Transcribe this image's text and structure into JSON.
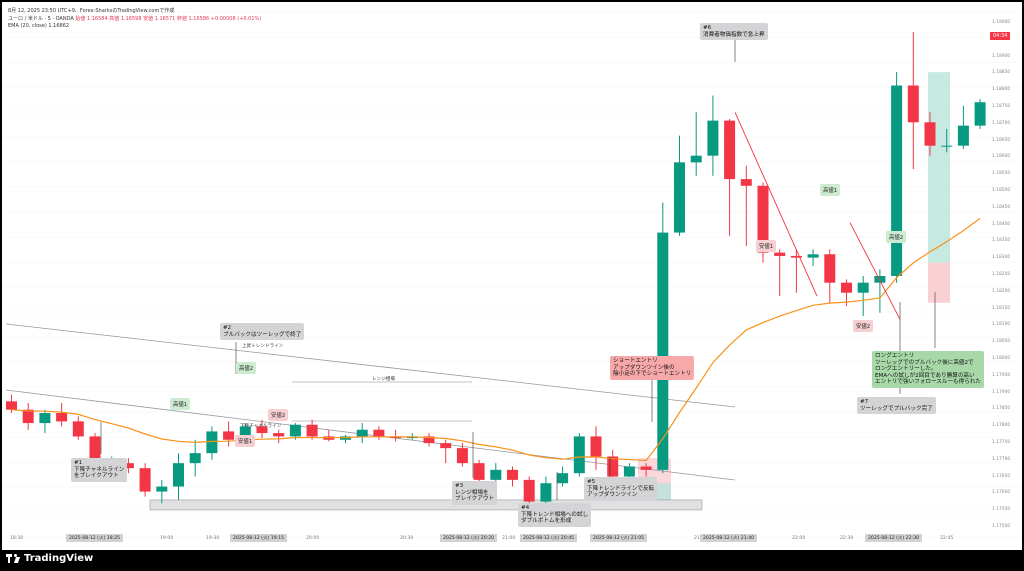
{
  "header": {
    "datetime": "8月 12, 2025 23:50 UTC+9、Forex-SharksのTradingView.comで作成",
    "symbol_line": "ユーロ / 米ドル · 5 · OANDA",
    "ohlc": "始値 1.16584 高値 1.16598 安値 1.16571 終値 1.16586 +0.00008 (+0.01%)",
    "ema": "EMA (20, close) 1.16862"
  },
  "brand": {
    "name": "TradingView"
  },
  "colors": {
    "up": "#089981",
    "down": "#f23645",
    "ema": "#f7931a",
    "trend_line": "#9598a1",
    "note_gray": "#d4d4d6",
    "note_green": "#a8d8a8",
    "note_red": "#f7a8a8"
  },
  "price_axis": {
    "ticks": [
      "1.19000",
      "1.18950",
      "1.18900",
      "1.18850",
      "1.18800",
      "1.18750",
      "1.18700",
      "1.18650",
      "1.18600",
      "1.18550",
      "1.18500",
      "1.18450",
      "1.18400",
      "1.18350",
      "1.18300",
      "1.18250",
      "1.18200",
      "1.18150",
      "1.18100",
      "1.18050",
      "1.18000",
      "1.17950",
      "1.17900",
      "1.17850",
      "1.17800",
      "1.17750",
      "1.17700",
      "1.17650",
      "1.17600",
      "1.17550",
      "1.17500"
    ],
    "current": "04:34"
  },
  "time_axis": {
    "ticks": [
      "18:30",
      "19:00",
      "19:30",
      "20:00",
      "20:30",
      "21:00",
      "21:30",
      "22:00",
      "22:30",
      "22:45"
    ],
    "highlights": [
      "2025-08-12 (火) 18:25",
      "2025-08-12 (火) 19:15",
      "2025-08-12 (火) 20:20",
      "2025-08-12 (火) 20:45",
      "2025-08-12 (火) 21:05",
      "2025-08-12 (火) 21:40",
      "2025-08-12 (火) 22:30"
    ]
  },
  "annotations": {
    "n1": [
      "#1",
      "下降チャネルライン",
      "をブレイクアウト"
    ],
    "n2": [
      "#2",
      "プルバックはツーレッグで終了"
    ],
    "n3": [
      "#3",
      "レンジ相場を",
      "ブレイクアウト"
    ],
    "n4": [
      "#4",
      "下降トレンド相場への試し",
      "ダブルボトムを形成"
    ],
    "n5": [
      "#5",
      "下降トレンドラインで反転",
      "アップダウンツイン"
    ],
    "n6": [
      "#6",
      "消費者物価指数で急上昇"
    ],
    "n7": [
      "#7",
      "ツーレッグでプルバック完了"
    ],
    "short_entry": [
      "ショートエントリ",
      "アップダウンツイン後の",
      "陰小足の下でショートエントリ"
    ],
    "long_entry": [
      "ロングエントリ",
      "ツーレッグでのプルバック後に高値2で",
      "ロングエントリーした。",
      "EMAへの試しが2回目であり勝算の高い",
      "エントリで強いフォロースルーも得られた"
    ]
  },
  "labels": {
    "high1_a": "高値1",
    "high2_a": "高値2",
    "low1_a": "安値1",
    "low2_a": "安値2",
    "high1_b": "高値1",
    "high2_b": "高値2",
    "low1_b": "安値1",
    "low2_b": "安値2",
    "upper_trend": "上昇トレンドライン",
    "lower_channel": "下降チャネルライン",
    "range": "レンジ相場"
  },
  "chart_data": {
    "type": "candlestick",
    "symbol": "ユーロ / 米ドル",
    "timeframe": "5",
    "ylim": [
      1.175,
      1.1905
    ],
    "candles": [
      {
        "o": 1.17885,
        "h": 1.17905,
        "l": 1.1785,
        "c": 1.1786
      },
      {
        "o": 1.1786,
        "h": 1.1788,
        "l": 1.178,
        "c": 1.1782
      },
      {
        "o": 1.1782,
        "h": 1.1786,
        "l": 1.1779,
        "c": 1.1785
      },
      {
        "o": 1.1785,
        "h": 1.1788,
        "l": 1.1781,
        "c": 1.17825
      },
      {
        "o": 1.17825,
        "h": 1.1784,
        "l": 1.1777,
        "c": 1.1778
      },
      {
        "o": 1.1778,
        "h": 1.1779,
        "l": 1.1767,
        "c": 1.17685
      },
      {
        "o": 1.17685,
        "h": 1.1772,
        "l": 1.1766,
        "c": 1.177
      },
      {
        "o": 1.177,
        "h": 1.17715,
        "l": 1.1767,
        "c": 1.17685
      },
      {
        "o": 1.17685,
        "h": 1.177,
        "l": 1.176,
        "c": 1.17615
      },
      {
        "o": 1.17615,
        "h": 1.1765,
        "l": 1.1758,
        "c": 1.1763
      },
      {
        "o": 1.1763,
        "h": 1.1773,
        "l": 1.1759,
        "c": 1.177
      },
      {
        "o": 1.177,
        "h": 1.1777,
        "l": 1.1766,
        "c": 1.1773
      },
      {
        "o": 1.1773,
        "h": 1.1781,
        "l": 1.1771,
        "c": 1.17795
      },
      {
        "o": 1.17795,
        "h": 1.17825,
        "l": 1.1775,
        "c": 1.1777
      },
      {
        "o": 1.1777,
        "h": 1.1782,
        "l": 1.17755,
        "c": 1.1781
      },
      {
        "o": 1.1781,
        "h": 1.1783,
        "l": 1.17775,
        "c": 1.1779
      },
      {
        "o": 1.1779,
        "h": 1.178,
        "l": 1.1776,
        "c": 1.1778
      },
      {
        "o": 1.1778,
        "h": 1.1782,
        "l": 1.1777,
        "c": 1.17815
      },
      {
        "o": 1.17815,
        "h": 1.1783,
        "l": 1.1777,
        "c": 1.1778
      },
      {
        "o": 1.1778,
        "h": 1.178,
        "l": 1.17765,
        "c": 1.1777
      },
      {
        "o": 1.1777,
        "h": 1.17785,
        "l": 1.1776,
        "c": 1.1778
      },
      {
        "o": 1.1778,
        "h": 1.1782,
        "l": 1.1776,
        "c": 1.178
      },
      {
        "o": 1.178,
        "h": 1.1781,
        "l": 1.1777,
        "c": 1.1778
      },
      {
        "o": 1.1778,
        "h": 1.178,
        "l": 1.17765,
        "c": 1.17775
      },
      {
        "o": 1.17775,
        "h": 1.1779,
        "l": 1.1777,
        "c": 1.1778
      },
      {
        "o": 1.1778,
        "h": 1.1779,
        "l": 1.1775,
        "c": 1.1776
      },
      {
        "o": 1.1776,
        "h": 1.1777,
        "l": 1.177,
        "c": 1.17745
      },
      {
        "o": 1.17745,
        "h": 1.1776,
        "l": 1.1769,
        "c": 1.177
      },
      {
        "o": 1.177,
        "h": 1.1771,
        "l": 1.1764,
        "c": 1.1765
      },
      {
        "o": 1.1765,
        "h": 1.177,
        "l": 1.1763,
        "c": 1.1768
      },
      {
        "o": 1.1768,
        "h": 1.1769,
        "l": 1.1763,
        "c": 1.1765
      },
      {
        "o": 1.1765,
        "h": 1.1766,
        "l": 1.1757,
        "c": 1.17585
      },
      {
        "o": 1.17585,
        "h": 1.1766,
        "l": 1.1757,
        "c": 1.1764
      },
      {
        "o": 1.1764,
        "h": 1.1769,
        "l": 1.1763,
        "c": 1.1767
      },
      {
        "o": 1.1767,
        "h": 1.1779,
        "l": 1.1766,
        "c": 1.1778
      },
      {
        "o": 1.1778,
        "h": 1.1781,
        "l": 1.1768,
        "c": 1.1772
      },
      {
        "o": 1.1772,
        "h": 1.1774,
        "l": 1.1764,
        "c": 1.1766
      },
      {
        "o": 1.1766,
        "h": 1.177,
        "l": 1.1762,
        "c": 1.1769
      },
      {
        "o": 1.1769,
        "h": 1.177,
        "l": 1.1766,
        "c": 1.1768
      },
      {
        "o": 1.1768,
        "h": 1.1848,
        "l": 1.1767,
        "c": 1.1839
      },
      {
        "o": 1.1839,
        "h": 1.1868,
        "l": 1.1838,
        "c": 1.186
      },
      {
        "o": 1.186,
        "h": 1.1875,
        "l": 1.1856,
        "c": 1.1862
      },
      {
        "o": 1.1862,
        "h": 1.188,
        "l": 1.1856,
        "c": 1.18725
      },
      {
        "o": 1.18725,
        "h": 1.1873,
        "l": 1.1838,
        "c": 1.1855
      },
      {
        "o": 1.1855,
        "h": 1.1859,
        "l": 1.1835,
        "c": 1.1853
      },
      {
        "o": 1.1853,
        "h": 1.1854,
        "l": 1.183,
        "c": 1.1833
      },
      {
        "o": 1.1833,
        "h": 1.1834,
        "l": 1.182,
        "c": 1.1832
      },
      {
        "o": 1.1832,
        "h": 1.1834,
        "l": 1.1821,
        "c": 1.18315
      },
      {
        "o": 1.18315,
        "h": 1.1834,
        "l": 1.1829,
        "c": 1.18325
      },
      {
        "o": 1.18325,
        "h": 1.1834,
        "l": 1.1818,
        "c": 1.1824
      },
      {
        "o": 1.1824,
        "h": 1.1825,
        "l": 1.1817,
        "c": 1.1821
      },
      {
        "o": 1.1821,
        "h": 1.1826,
        "l": 1.1814,
        "c": 1.1824
      },
      {
        "o": 1.1824,
        "h": 1.1828,
        "l": 1.1815,
        "c": 1.1826
      },
      {
        "o": 1.1826,
        "h": 1.1887,
        "l": 1.1824,
        "c": 1.1883
      },
      {
        "o": 1.1883,
        "h": 1.1899,
        "l": 1.1858,
        "c": 1.1872
      },
      {
        "o": 1.1872,
        "h": 1.1875,
        "l": 1.1862,
        "c": 1.1865
      },
      {
        "o": 1.1865,
        "h": 1.187,
        "l": 1.1863,
        "c": 1.1865
      },
      {
        "o": 1.1865,
        "h": 1.1877,
        "l": 1.1864,
        "c": 1.1871
      },
      {
        "o": 1.1871,
        "h": 1.1879,
        "l": 1.187,
        "c": 1.1878
      }
    ],
    "ema_period": 20
  }
}
